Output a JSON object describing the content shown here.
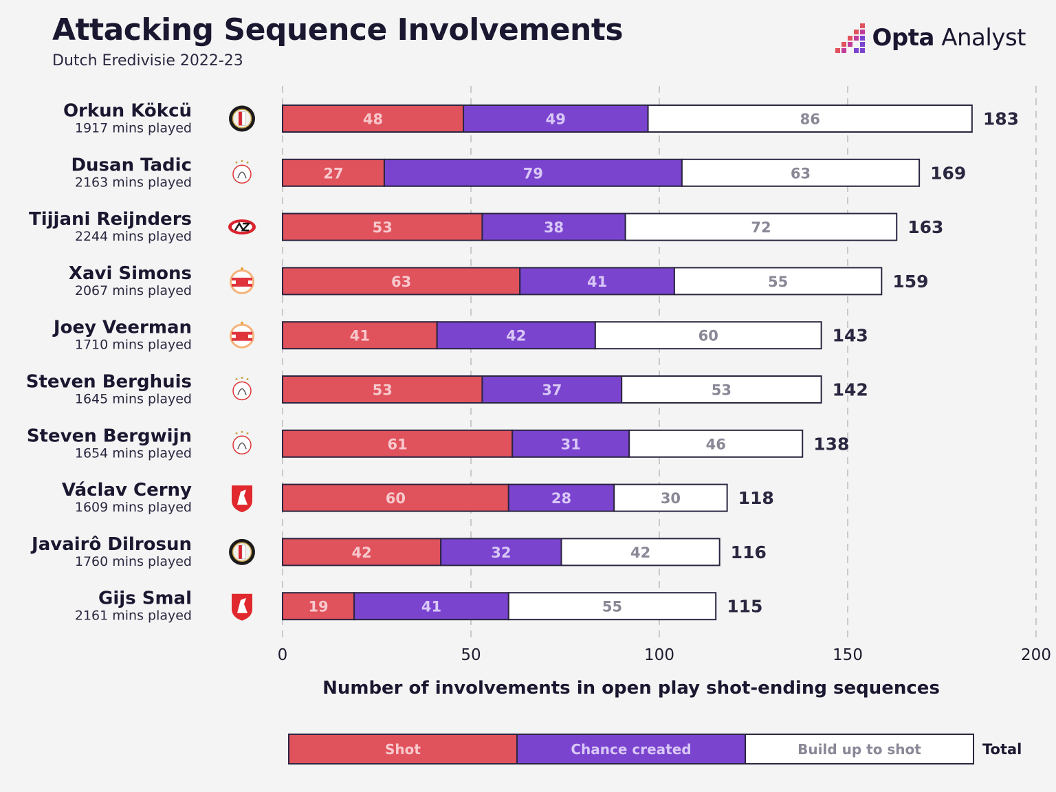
{
  "header": {
    "title": "Attacking Sequence Involvements",
    "subtitle": "Dutch Eredivisie 2022-23",
    "brand_bold": "Opta",
    "brand_light": " Analyst"
  },
  "colors": {
    "shot": "#e0525c",
    "chance": "#7a44cf",
    "build": "#ffffff",
    "outline": "#2b2540",
    "grid": "#c9c9c9"
  },
  "legend": {
    "shot": "Shot",
    "chance": "Chance created",
    "build": "Build up to shot",
    "total": "Total"
  },
  "chart_data": {
    "type": "bar",
    "orientation": "horizontal",
    "stacked": true,
    "title": "Attacking Sequence Involvements",
    "subtitle": "Dutch Eredivisie 2022-23",
    "xlabel": "Number of involvements in open play shot-ending sequences",
    "ylabel": "",
    "xlim": [
      0,
      200
    ],
    "xticks": [
      0,
      50,
      100,
      150,
      200
    ],
    "grid": true,
    "legend_position": "bottom",
    "categories": [
      "Orkun Kökcü",
      "Dusan Tadic",
      "Tijjani Reijnders",
      "Xavi Simons",
      "Joey Veerman",
      "Steven Berghuis",
      "Steven Bergwijn",
      "Václav Cerny",
      "Javairô Dilrosun",
      "Gijs Smal"
    ],
    "minutes": [
      "1917 mins played",
      "2163 mins played",
      "2244 mins played",
      "2067 mins played",
      "1710 mins played",
      "1645 mins played",
      "1654 mins played",
      "1609 mins played",
      "1760 mins played",
      "2161 mins played"
    ],
    "clubs": [
      "feyenoord",
      "ajax",
      "az",
      "psv",
      "psv",
      "ajax",
      "ajax",
      "twente",
      "feyenoord",
      "twente"
    ],
    "series": [
      {
        "name": "Shot",
        "values": [
          48,
          27,
          53,
          63,
          41,
          53,
          61,
          60,
          42,
          19
        ]
      },
      {
        "name": "Chance created",
        "values": [
          49,
          79,
          38,
          41,
          42,
          37,
          31,
          28,
          32,
          41
        ]
      },
      {
        "name": "Build up to shot",
        "values": [
          86,
          63,
          72,
          55,
          60,
          53,
          46,
          30,
          42,
          55
        ]
      }
    ],
    "totals": [
      183,
      169,
      163,
      159,
      143,
      142,
      138,
      118,
      116,
      115
    ]
  }
}
